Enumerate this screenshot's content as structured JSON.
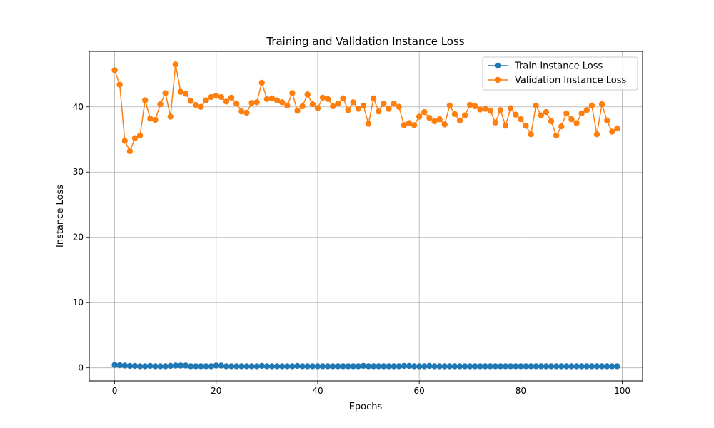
{
  "chart_data": {
    "type": "line",
    "title": "Training and Validation Instance Loss",
    "xlabel": "Epochs",
    "ylabel": "Instance Loss",
    "xlim": [
      -5,
      104
    ],
    "ylim": [
      -2,
      48.5
    ],
    "xticks": [
      0,
      20,
      40,
      60,
      80,
      100
    ],
    "yticks": [
      0,
      10,
      20,
      30,
      40
    ],
    "grid": true,
    "legend_position": "upper right",
    "x": [
      0,
      1,
      2,
      3,
      4,
      5,
      6,
      7,
      8,
      9,
      10,
      11,
      12,
      13,
      14,
      15,
      16,
      17,
      18,
      19,
      20,
      21,
      22,
      23,
      24,
      25,
      26,
      27,
      28,
      29,
      30,
      31,
      32,
      33,
      34,
      35,
      36,
      37,
      38,
      39,
      40,
      41,
      42,
      43,
      44,
      45,
      46,
      47,
      48,
      49,
      50,
      51,
      52,
      53,
      54,
      55,
      56,
      57,
      58,
      59,
      60,
      61,
      62,
      63,
      64,
      65,
      66,
      67,
      68,
      69,
      70,
      71,
      72,
      73,
      74,
      75,
      76,
      77,
      78,
      79,
      80,
      81,
      82,
      83,
      84,
      85,
      86,
      87,
      88,
      89,
      90,
      91,
      92,
      93,
      94,
      95,
      96,
      97,
      98,
      99
    ],
    "series": [
      {
        "name": "Train Instance Loss",
        "color": "#1f77b4",
        "values": [
          0.45,
          0.4,
          0.35,
          0.3,
          0.3,
          0.25,
          0.25,
          0.3,
          0.25,
          0.25,
          0.25,
          0.3,
          0.35,
          0.35,
          0.35,
          0.25,
          0.25,
          0.25,
          0.25,
          0.25,
          0.35,
          0.35,
          0.25,
          0.25,
          0.25,
          0.25,
          0.25,
          0.25,
          0.25,
          0.3,
          0.25,
          0.25,
          0.25,
          0.25,
          0.25,
          0.25,
          0.3,
          0.25,
          0.25,
          0.25,
          0.25,
          0.25,
          0.25,
          0.25,
          0.25,
          0.25,
          0.25,
          0.25,
          0.25,
          0.3,
          0.25,
          0.25,
          0.25,
          0.25,
          0.25,
          0.25,
          0.25,
          0.3,
          0.3,
          0.25,
          0.25,
          0.25,
          0.3,
          0.25,
          0.25,
          0.25,
          0.25,
          0.25,
          0.25,
          0.25,
          0.25,
          0.25,
          0.25,
          0.25,
          0.25,
          0.25,
          0.25,
          0.25,
          0.25,
          0.25,
          0.25,
          0.25,
          0.25,
          0.25,
          0.25,
          0.25,
          0.25,
          0.25,
          0.25,
          0.25,
          0.25,
          0.25,
          0.25,
          0.25,
          0.25,
          0.25,
          0.25,
          0.25,
          0.25,
          0.25
        ]
      },
      {
        "name": "Validation Instance Loss",
        "color": "#ff7f0e",
        "values": [
          45.6,
          43.4,
          34.8,
          33.2,
          35.2,
          35.6,
          41.0,
          38.2,
          38.0,
          40.4,
          42.1,
          38.5,
          46.5,
          42.3,
          42.0,
          40.9,
          40.3,
          40.0,
          41.0,
          41.5,
          41.7,
          41.5,
          40.8,
          41.4,
          40.5,
          39.3,
          39.1,
          40.6,
          40.7,
          43.7,
          41.2,
          41.3,
          41.0,
          40.7,
          40.2,
          42.1,
          39.4,
          40.1,
          41.9,
          40.4,
          39.8,
          41.4,
          41.2,
          40.1,
          40.5,
          41.3,
          39.5,
          40.7,
          39.7,
          40.2,
          37.4,
          41.3,
          39.3,
          40.5,
          39.7,
          40.5,
          40.0,
          37.2,
          37.5,
          37.2,
          38.5,
          39.2,
          38.3,
          37.8,
          38.1,
          37.3,
          40.2,
          38.9,
          37.9,
          38.7,
          40.3,
          40.1,
          39.6,
          39.7,
          39.4,
          37.6,
          39.5,
          37.1,
          39.8,
          38.8,
          38.1,
          37.1,
          35.8,
          40.2,
          38.7,
          39.2,
          37.8,
          35.6,
          37.0,
          39.0,
          38.1,
          37.5,
          39.0,
          39.5,
          40.2,
          35.8,
          40.4,
          37.9,
          36.2,
          36.7
        ]
      }
    ]
  }
}
